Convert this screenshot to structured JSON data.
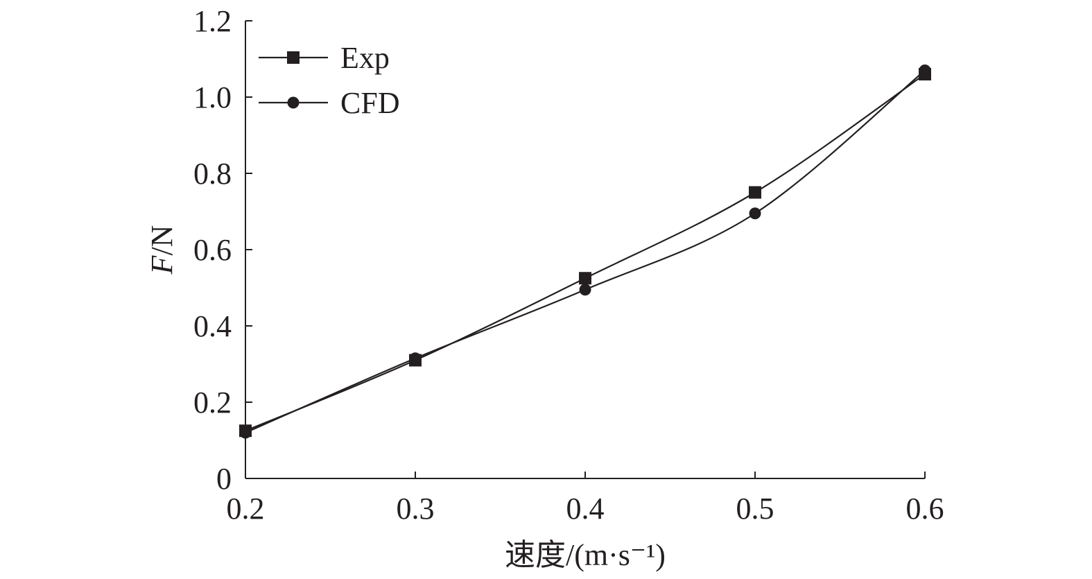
{
  "chart_data": {
    "type": "line",
    "title": "",
    "xlabel": "速度/(m·s⁻¹)",
    "ylabel_italic": "F",
    "ylabel_rest": "/N",
    "x": [
      0.2,
      0.3,
      0.4,
      0.5,
      0.6
    ],
    "x_ticks": [
      "0.2",
      "0.3",
      "0.4",
      "0.5",
      "0.6"
    ],
    "y_ticks": [
      "0",
      "0.2",
      "0.4",
      "0.6",
      "0.8",
      "1.0",
      "1.2"
    ],
    "xlim": [
      0.2,
      0.6
    ],
    "ylim": [
      0,
      1.2
    ],
    "grid": false,
    "legend_position": "top-left",
    "series": [
      {
        "name": "Exp",
        "marker": "square",
        "values": [
          0.125,
          0.31,
          0.525,
          0.75,
          1.06
        ]
      },
      {
        "name": "CFD",
        "marker": "circle",
        "values": [
          0.12,
          0.315,
          0.495,
          0.695,
          1.07
        ]
      }
    ],
    "colors": {
      "ink": "#231f20",
      "background": "#ffffff"
    }
  }
}
